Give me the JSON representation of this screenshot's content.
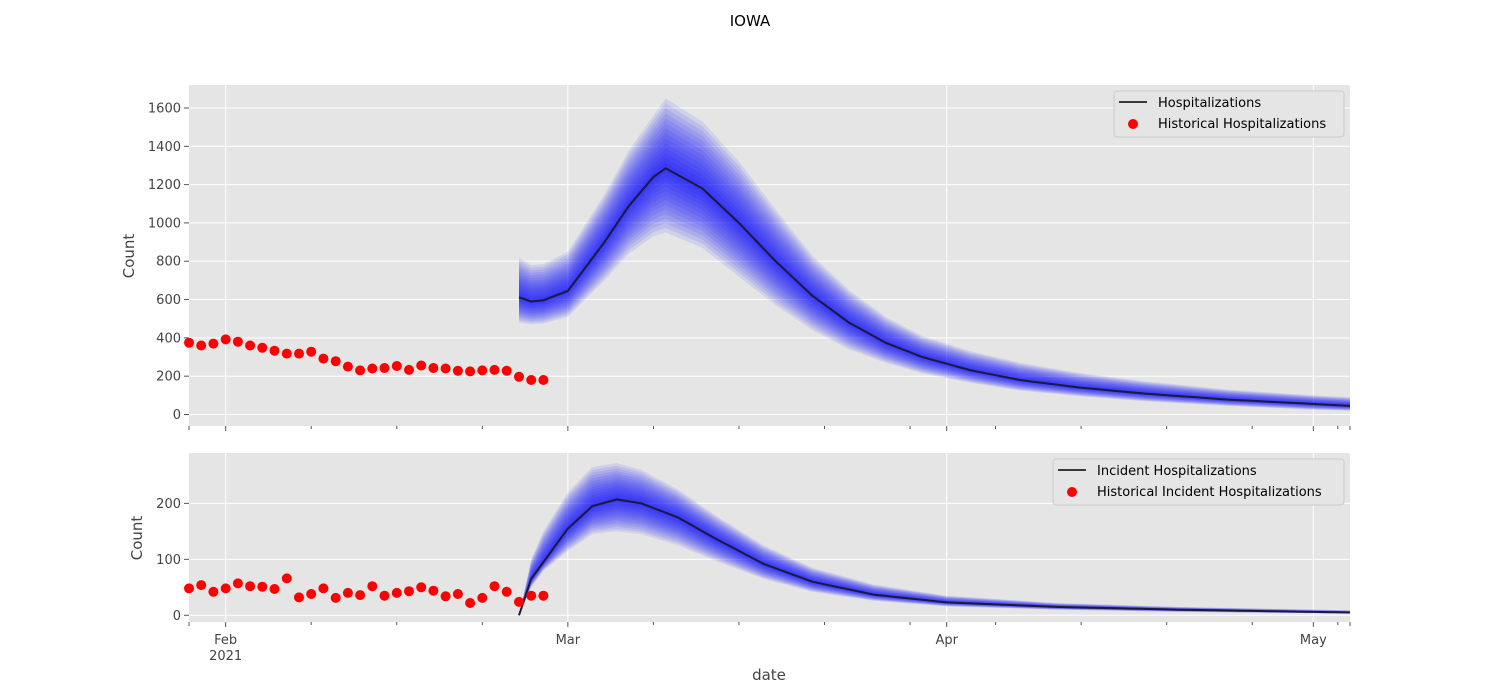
{
  "figure": {
    "title": "IOWA",
    "xlabel": "date"
  },
  "chart_data": [
    {
      "type": "line",
      "panel": "top",
      "ylabel": "Count",
      "ylim": [
        -60,
        1720
      ],
      "yticks": [
        0,
        200,
        400,
        600,
        800,
        1000,
        1200,
        1400,
        1600
      ],
      "grid": true,
      "legend_position": "top-right",
      "x_dates": [
        "2021-01-29",
        "2021-05-04"
      ],
      "xtick_labels": [
        {
          "date": "2021-02-01",
          "label": "Feb",
          "sublabel": "2021"
        },
        {
          "date": "2021-03-01",
          "label": "Mar",
          "sublabel": ""
        },
        {
          "date": "2021-04-01",
          "label": "Apr",
          "sublabel": ""
        },
        {
          "date": "2021-05-01",
          "label": "May",
          "sublabel": ""
        }
      ],
      "historical": {
        "name": "Historical Hospitalizations",
        "color": "#ff0000",
        "start_date": "2021-01-29",
        "values": [
          375,
          360,
          370,
          392,
          380,
          360,
          348,
          333,
          318,
          318,
          328,
          292,
          278,
          250,
          230,
          240,
          243,
          253,
          233,
          256,
          243,
          240,
          228,
          225,
          230,
          233,
          228,
          197,
          180,
          180
        ]
      },
      "forecast": {
        "name": "Hospitalizations",
        "color": "#000000",
        "band_color": "#0000ff",
        "start_date": "2021-02-25",
        "key_dates": [
          "2021-02-25",
          "2021-02-26",
          "2021-02-27",
          "2021-03-01",
          "2021-03-04",
          "2021-03-06",
          "2021-03-08",
          "2021-03-09",
          "2021-03-12",
          "2021-03-15",
          "2021-03-18",
          "2021-03-21",
          "2021-03-24",
          "2021-03-27",
          "2021-03-30",
          "2021-04-03",
          "2021-04-07",
          "2021-04-12",
          "2021-04-17",
          "2021-04-24",
          "2021-05-01",
          "2021-05-04"
        ],
        "median": [
          612,
          590,
          596,
          645,
          900,
          1090,
          1240,
          1285,
          1180,
          1000,
          800,
          620,
          480,
          375,
          300,
          230,
          180,
          140,
          110,
          78,
          55,
          45
        ],
        "upper": [
          820,
          780,
          785,
          850,
          1150,
          1380,
          1560,
          1650,
          1530,
          1320,
          1070,
          830,
          650,
          510,
          410,
          330,
          270,
          215,
          175,
          130,
          100,
          90
        ],
        "lower": [
          480,
          470,
          475,
          510,
          700,
          840,
          930,
          950,
          870,
          720,
          570,
          440,
          340,
          270,
          215,
          165,
          125,
          95,
          70,
          45,
          25,
          20
        ]
      }
    },
    {
      "type": "line",
      "panel": "bottom",
      "ylabel": "Count",
      "ylim": [
        -12,
        290
      ],
      "yticks": [
        0,
        100,
        200
      ],
      "grid": true,
      "legend_position": "top-right",
      "x_dates": [
        "2021-01-29",
        "2021-05-04"
      ],
      "historical": {
        "name": "Historical Incident Hospitalizations",
        "color": "#ff0000",
        "start_date": "2021-01-29",
        "values": [
          48,
          54,
          42,
          48,
          57,
          52,
          51,
          47,
          66,
          32,
          38,
          48,
          31,
          40,
          36,
          52,
          35,
          40,
          43,
          50,
          44,
          34,
          38,
          22,
          31,
          52,
          42,
          24,
          35,
          35
        ]
      },
      "forecast": {
        "name": "Incident Hospitalizations",
        "color": "#000000",
        "band_color": "#0000ff",
        "start_date": "2021-02-25",
        "key_dates": [
          "2021-02-25",
          "2021-02-26",
          "2021-02-27",
          "2021-03-01",
          "2021-03-03",
          "2021-03-05",
          "2021-03-07",
          "2021-03-10",
          "2021-03-13",
          "2021-03-17",
          "2021-03-21",
          "2021-03-26",
          "2021-04-01",
          "2021-04-10",
          "2021-04-20",
          "2021-05-04"
        ],
        "median": [
          0,
          65,
          95,
          155,
          195,
          207,
          200,
          175,
          138,
          92,
          60,
          37,
          23,
          15,
          10,
          5
        ],
        "upper": [
          0,
          100,
          150,
          220,
          265,
          272,
          260,
          225,
          180,
          125,
          85,
          55,
          35,
          22,
          15,
          9
        ],
        "lower": [
          0,
          50,
          80,
          115,
          145,
          150,
          145,
          125,
          98,
          65,
          42,
          26,
          16,
          10,
          6,
          3
        ]
      }
    }
  ]
}
